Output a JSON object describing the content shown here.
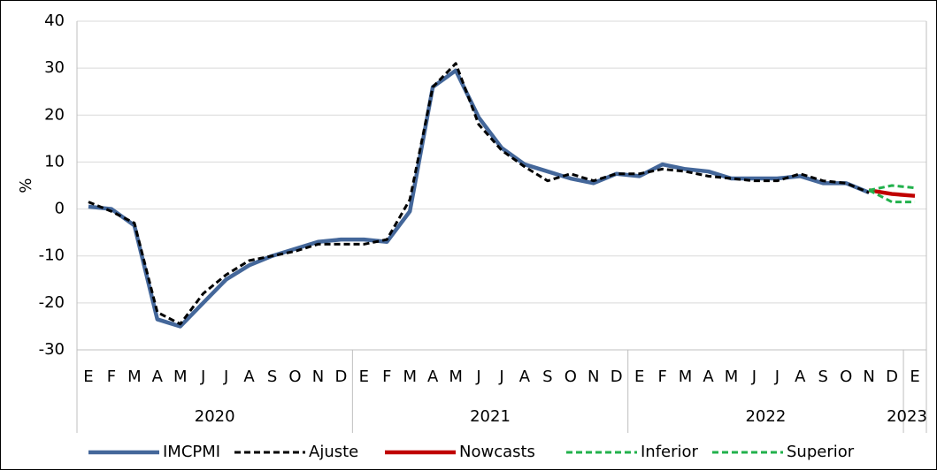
{
  "chart_data": {
    "type": "line",
    "y_label": "%",
    "category_groups": [
      {
        "label": "2020",
        "categories": [
          "E",
          "F",
          "M",
          "A",
          "M",
          "J",
          "J",
          "A",
          "S",
          "O",
          "N",
          "D"
        ]
      },
      {
        "label": "2021",
        "categories": [
          "E",
          "F",
          "M",
          "A",
          "M",
          "J",
          "J",
          "A",
          "S",
          "O",
          "N",
          "D"
        ]
      },
      {
        "label": "2022",
        "categories": [
          "E",
          "F",
          "M",
          "A",
          "M",
          "J",
          "J",
          "A",
          "S",
          "O",
          "N",
          "D"
        ]
      },
      {
        "label": "2023",
        "categories": [
          "E"
        ]
      }
    ],
    "series": [
      {
        "name": "IMCPMI",
        "color": "#44679a",
        "line_style": "solid",
        "values": [
          0.5,
          0,
          -3.5,
          -23.5,
          -25,
          -20,
          -15,
          -12,
          -10,
          -8.5,
          -7,
          -6.5,
          -6.5,
          -7,
          -0.5,
          26,
          29.5,
          19.5,
          13,
          9.5,
          8,
          6.5,
          5.5,
          7.5,
          7,
          9.5,
          8.5,
          8,
          6.5,
          6.5,
          6.5,
          7,
          5.5,
          5.5,
          3.5,
          null,
          null
        ]
      },
      {
        "name": "Ajuste",
        "color": "#000000",
        "line_style": "dashed",
        "values": [
          1.5,
          -0.5,
          -3,
          -22,
          -24.5,
          -18,
          -14,
          -11,
          -10,
          -9,
          -7.5,
          -7.5,
          -7.5,
          -6.5,
          2,
          26,
          31,
          18,
          12.5,
          9,
          6,
          7.5,
          6,
          7.5,
          7.5,
          8.5,
          8,
          7,
          6.5,
          6,
          6,
          7.5,
          6,
          5.5,
          3.5,
          null,
          null
        ]
      },
      {
        "name": "Nowcasts",
        "color": "#c00000",
        "line_style": "solid",
        "values": [
          null,
          null,
          null,
          null,
          null,
          null,
          null,
          null,
          null,
          null,
          null,
          null,
          null,
          null,
          null,
          null,
          null,
          null,
          null,
          null,
          null,
          null,
          null,
          null,
          null,
          null,
          null,
          null,
          null,
          null,
          null,
          null,
          null,
          null,
          4,
          3.2,
          2.8
        ]
      },
      {
        "name": "Inferior",
        "color": "#22b14c",
        "line_style": "dashed",
        "values": [
          null,
          null,
          null,
          null,
          null,
          null,
          null,
          null,
          null,
          null,
          null,
          null,
          null,
          null,
          null,
          null,
          null,
          null,
          null,
          null,
          null,
          null,
          null,
          null,
          null,
          null,
          null,
          null,
          null,
          null,
          null,
          null,
          null,
          null,
          4,
          1.5,
          1.5
        ]
      },
      {
        "name": "Superior",
        "color": "#22b14c",
        "line_style": "dashed",
        "values": [
          null,
          null,
          null,
          null,
          null,
          null,
          null,
          null,
          null,
          null,
          null,
          null,
          null,
          null,
          null,
          null,
          null,
          null,
          null,
          null,
          null,
          null,
          null,
          null,
          null,
          null,
          null,
          null,
          null,
          null,
          null,
          null,
          null,
          null,
          4,
          5,
          4.5
        ]
      }
    ],
    "ylim": [
      -30,
      40
    ],
    "yticks": [
      -30,
      -20,
      -10,
      0,
      10,
      20,
      30,
      40
    ],
    "grid": true,
    "legend": "bottom"
  }
}
